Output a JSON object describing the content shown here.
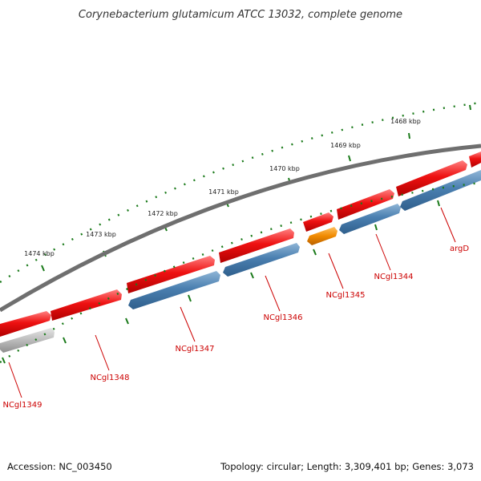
{
  "title": "Corynebacterium glutamicum ATCC 13032, complete genome",
  "footer": {
    "accession": "Accession: NC_003450",
    "summary": "Topology: circular; Length: 3,309,401 bp; Genes: 3,073"
  },
  "scale_ticks": [
    {
      "label": "1468 kbp"
    },
    {
      "label": "1469 kbp"
    },
    {
      "label": "1470 kbp"
    },
    {
      "label": "1471 kbp"
    },
    {
      "label": "1472 kbp"
    },
    {
      "label": "1473 kbp"
    },
    {
      "label": "1474 kbp"
    }
  ],
  "gene_labels": [
    {
      "label": "argD"
    },
    {
      "label": "NCgl1344"
    },
    {
      "label": "NCgl1345"
    },
    {
      "label": "NCgl1346"
    },
    {
      "label": "NCgl1347"
    },
    {
      "label": "NCgl1348"
    },
    {
      "label": "NCgl1349"
    }
  ],
  "colors": {
    "forward_gene": "#ee1111",
    "reverse_gene": "#4a7fb0",
    "rna_gene": "#f08a00",
    "pseudo_gene": "#b8b8b8",
    "backbone": "#777777",
    "tick": "#1a7a1a",
    "label": "#cc0000"
  }
}
